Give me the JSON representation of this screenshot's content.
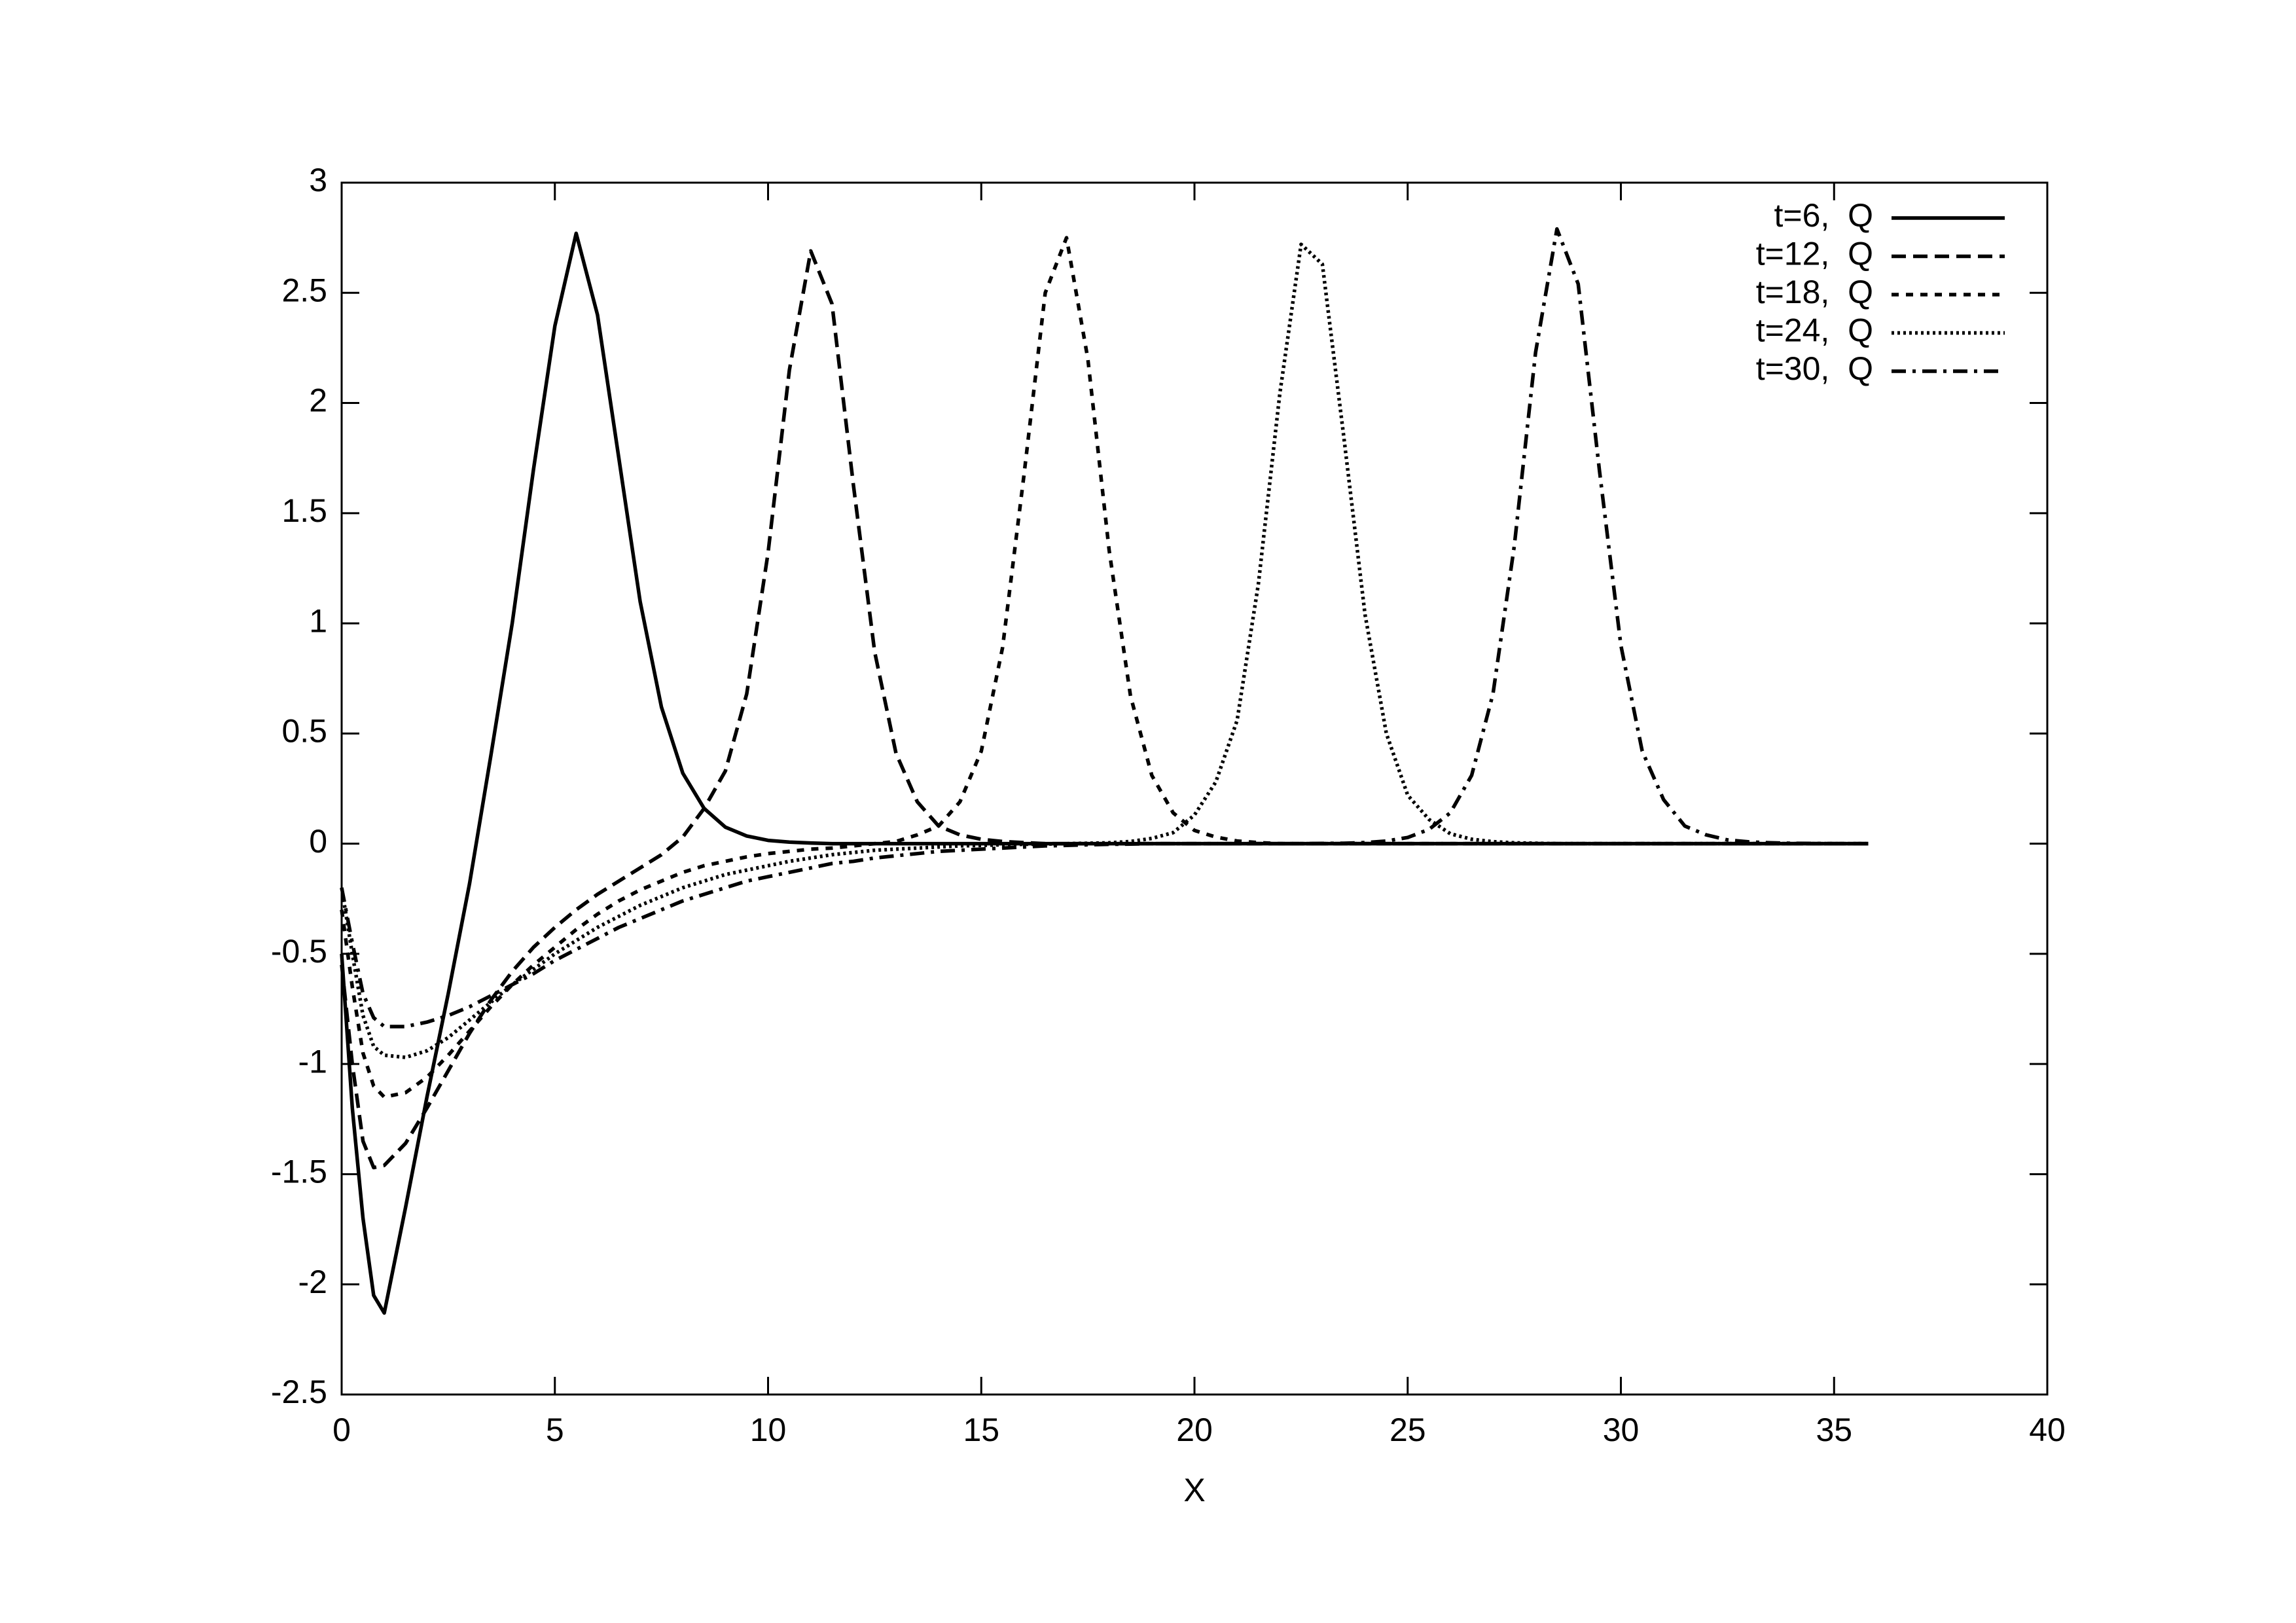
{
  "chart_data": {
    "type": "line",
    "xlabel": "X",
    "x": [
      0,
      0.25,
      0.5,
      0.75,
      1,
      1.5,
      2,
      2.5,
      3,
      3.5,
      4,
      4.5,
      5,
      5.5,
      6,
      6.5,
      7,
      7.5,
      8,
      8.5,
      9,
      9.5,
      10,
      10.5,
      11,
      11.5,
      12,
      12.5,
      13,
      13.5,
      14,
      14.5,
      15,
      15.5,
      16,
      16.5,
      17,
      17.5,
      18,
      18.5,
      19,
      19.5,
      20,
      20.5,
      21,
      21.5,
      22,
      22.5,
      23,
      23.5,
      24,
      24.5,
      25,
      25.5,
      26,
      26.5,
      27,
      27.5,
      28,
      28.5,
      29,
      29.5,
      30,
      30.5,
      31,
      31.5,
      32,
      32.5,
      33,
      33.5,
      34,
      34.5,
      35,
      35.5,
      35.8
    ],
    "series": [
      {
        "name": "t=6,  Q",
        "color": "#000000",
        "dash": "solid",
        "values": [
          -0.5,
          -1.2,
          -1.7,
          -2.05,
          -2.13,
          -1.65,
          -1.15,
          -0.68,
          -0.18,
          0.4,
          1.0,
          1.7,
          2.35,
          2.77,
          2.4,
          1.75,
          1.1,
          0.62,
          0.32,
          0.16,
          0.075,
          0.035,
          0.015,
          0.007,
          0.003,
          0,
          0,
          0,
          0,
          0,
          0,
          0,
          0,
          0,
          0,
          0,
          0,
          0,
          0,
          0,
          0,
          0,
          0,
          0,
          0,
          0,
          0,
          0,
          0,
          0,
          0,
          0,
          0,
          0,
          0,
          0,
          0,
          0,
          0,
          0,
          0,
          0,
          0,
          0,
          0,
          0,
          0,
          0,
          0,
          0,
          0,
          0,
          0,
          0,
          0
        ]
      },
      {
        "name": "t=12,  Q",
        "color": "#000000",
        "dash": "dashed",
        "values": [
          -0.55,
          -1.0,
          -1.35,
          -1.47,
          -1.46,
          -1.36,
          -1.2,
          -1.03,
          -0.86,
          -0.71,
          -0.58,
          -0.47,
          -0.38,
          -0.3,
          -0.23,
          -0.17,
          -0.11,
          -0.05,
          0.03,
          0.16,
          0.33,
          0.68,
          1.32,
          2.15,
          2.69,
          2.45,
          1.63,
          0.87,
          0.41,
          0.19,
          0.08,
          0.04,
          0.02,
          0.01,
          0.005,
          0,
          0,
          0,
          0,
          0,
          0,
          0,
          0,
          0,
          0,
          0,
          0,
          0,
          0,
          0,
          0,
          0,
          0,
          0,
          0,
          0,
          0,
          0,
          0,
          0,
          0,
          0,
          0,
          0,
          0,
          0,
          0,
          0,
          0,
          0,
          0,
          0,
          0,
          0,
          0
        ]
      },
      {
        "name": "t=18,  Q",
        "color": "#000000",
        "dash": "short-dashed",
        "values": [
          -0.3,
          -0.65,
          -0.95,
          -1.1,
          -1.15,
          -1.13,
          -1.06,
          -0.96,
          -0.85,
          -0.74,
          -0.64,
          -0.55,
          -0.47,
          -0.39,
          -0.32,
          -0.26,
          -0.21,
          -0.17,
          -0.13,
          -0.1,
          -0.08,
          -0.06,
          -0.045,
          -0.035,
          -0.025,
          -0.02,
          -0.01,
          0,
          0.01,
          0.04,
          0.08,
          0.19,
          0.42,
          0.89,
          1.67,
          2.5,
          2.75,
          2.2,
          1.33,
          0.67,
          0.31,
          0.14,
          0.06,
          0.03,
          0.012,
          0.005,
          0,
          0,
          0,
          0,
          0,
          0,
          0,
          0,
          0,
          0,
          0,
          0,
          0,
          0,
          0,
          0,
          0,
          0,
          0,
          0,
          0,
          0,
          0,
          0,
          0,
          0,
          0,
          0,
          0
        ]
      },
      {
        "name": "t=24,  Q",
        "color": "#000000",
        "dash": "dotted",
        "values": [
          -0.2,
          -0.5,
          -0.78,
          -0.92,
          -0.96,
          -0.97,
          -0.94,
          -0.88,
          -0.8,
          -0.72,
          -0.64,
          -0.57,
          -0.5,
          -0.44,
          -0.38,
          -0.33,
          -0.28,
          -0.24,
          -0.2,
          -0.17,
          -0.14,
          -0.12,
          -0.1,
          -0.08,
          -0.065,
          -0.05,
          -0.04,
          -0.03,
          -0.025,
          -0.02,
          -0.015,
          -0.01,
          -0.008,
          -0.005,
          -0.003,
          -0.002,
          0,
          0.002,
          0.004,
          0.01,
          0.024,
          0.05,
          0.13,
          0.28,
          0.56,
          1.18,
          2.04,
          2.72,
          2.63,
          1.85,
          1.04,
          0.5,
          0.22,
          0.11,
          0.045,
          0.02,
          0.009,
          0.004,
          0.002,
          0,
          0,
          0,
          0,
          0,
          0,
          0,
          0,
          0,
          0,
          0,
          0,
          0,
          0,
          0,
          0
        ]
      },
      {
        "name": "t=30,  Q",
        "color": "#000000",
        "dash": "dash-dot",
        "values": [
          -0.2,
          -0.45,
          -0.68,
          -0.79,
          -0.83,
          -0.83,
          -0.81,
          -0.78,
          -0.74,
          -0.69,
          -0.64,
          -0.59,
          -0.53,
          -0.48,
          -0.43,
          -0.38,
          -0.34,
          -0.3,
          -0.26,
          -0.23,
          -0.2,
          -0.17,
          -0.15,
          -0.13,
          -0.11,
          -0.09,
          -0.08,
          -0.065,
          -0.055,
          -0.045,
          -0.035,
          -0.03,
          -0.025,
          -0.02,
          -0.015,
          -0.01,
          -0.008,
          -0.005,
          -0.003,
          -0.002,
          0,
          0,
          0,
          0,
          0,
          0,
          0,
          0,
          0.001,
          0.002,
          0.005,
          0.012,
          0.028,
          0.065,
          0.14,
          0.31,
          0.68,
          1.35,
          2.23,
          2.79,
          2.54,
          1.69,
          0.9,
          0.42,
          0.2,
          0.08,
          0.04,
          0.017,
          0.008,
          0.004,
          0.002,
          0.001,
          0,
          0,
          0
        ]
      }
    ],
    "xlim": [
      0,
      40
    ],
    "xticks": [
      0,
      5,
      10,
      15,
      20,
      25,
      30,
      35,
      40
    ],
    "ylim": [
      -2.5,
      3
    ],
    "yticks": [
      -2.5,
      -2,
      -1.5,
      -1,
      -0.5,
      0,
      0.5,
      1,
      1.5,
      2,
      2.5,
      3
    ],
    "grid": false,
    "legend": "upper right"
  }
}
